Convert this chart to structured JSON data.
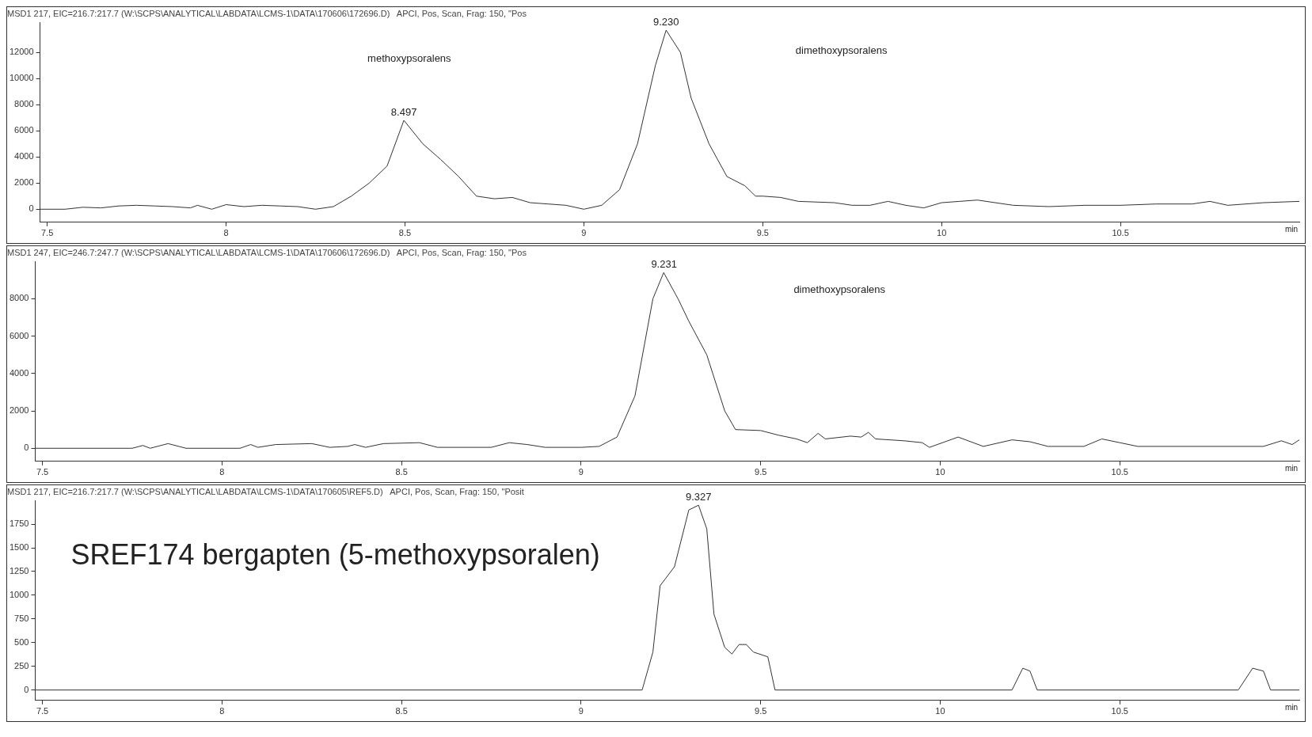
{
  "chart_data": [
    {
      "type": "line",
      "title": "MSD1 217, EIC=216.7:217.7 (W:\\SCPS\\ANALYTICAL\\LABDATA\\LCMS-1\\DATA\\170606\\172696.D)   APCI, Pos, Scan, Frag: 150, \"Pos",
      "xlabel": "min",
      "marker": "none",
      "grid": false,
      "xlim": [
        7.48,
        11.0
      ],
      "xticks": [
        7.5,
        8,
        8.5,
        9,
        9.5,
        10,
        10.5
      ],
      "ylim": [
        -1000,
        14300
      ],
      "yticks": [
        0,
        2000,
        4000,
        6000,
        8000,
        10000,
        12000
      ],
      "x": [
        7.48,
        7.55,
        7.6,
        7.65,
        7.7,
        7.75,
        7.8,
        7.85,
        7.9,
        7.92,
        7.96,
        8.0,
        8.05,
        8.1,
        8.15,
        8.2,
        8.25,
        8.3,
        8.35,
        8.4,
        8.45,
        8.497,
        8.55,
        8.6,
        8.65,
        8.7,
        8.75,
        8.8,
        8.85,
        8.9,
        8.95,
        9.0,
        9.05,
        9.1,
        9.15,
        9.2,
        9.23,
        9.27,
        9.3,
        9.35,
        9.4,
        9.45,
        9.48,
        9.5,
        9.55,
        9.6,
        9.7,
        9.75,
        9.8,
        9.85,
        9.9,
        9.95,
        10.0,
        10.05,
        10.1,
        10.15,
        10.2,
        10.3,
        10.4,
        10.5,
        10.6,
        10.7,
        10.75,
        10.8,
        10.9,
        11.0
      ],
      "series": [
        {
          "color": "#333333",
          "values": [
            0,
            0,
            150,
            100,
            250,
            300,
            250,
            200,
            100,
            300,
            0,
            350,
            200,
            300,
            250,
            200,
            0,
            200,
            1000,
            2000,
            3300,
            6800,
            5000,
            3800,
            2500,
            1000,
            800,
            900,
            500,
            400,
            300,
            0,
            300,
            1500,
            5000,
            11000,
            13700,
            12000,
            8500,
            5000,
            2500,
            1800,
            1000,
            1000,
            900,
            600,
            500,
            300,
            300,
            600,
            300,
            100,
            500,
            600,
            700,
            500,
            300,
            200,
            300,
            300,
            400,
            400,
            600,
            300,
            500,
            600
          ]
        }
      ],
      "annotations": [
        {
          "text": "8.497",
          "x": 8.497,
          "y": 6800
        },
        {
          "text": "9.230",
          "x": 9.23,
          "y": 13700
        },
        "methoxypsoralens",
        "dimethoxypsoralens"
      ]
    },
    {
      "type": "line",
      "title": "MSD1 247, EIC=246.7:247.7 (W:\\SCPS\\ANALYTICAL\\LABDATA\\LCMS-1\\DATA\\170606\\172696.D)   APCI, Pos, Scan, Frag: 150, \"Pos",
      "xlabel": "min",
      "marker": "none",
      "grid": false,
      "xlim": [
        7.48,
        11.0
      ],
      "xticks": [
        7.5,
        8,
        8.5,
        9,
        9.5,
        10,
        10.5
      ],
      "ylim": [
        -700,
        10000
      ],
      "yticks": [
        0,
        2000,
        4000,
        6000,
        8000
      ],
      "x": [
        7.48,
        7.75,
        7.78,
        7.8,
        7.85,
        7.9,
        8.05,
        8.08,
        8.1,
        8.15,
        8.25,
        8.3,
        8.35,
        8.37,
        8.4,
        8.45,
        8.55,
        8.6,
        8.75,
        8.8,
        8.85,
        8.9,
        9.0,
        9.05,
        9.1,
        9.15,
        9.2,
        9.23,
        9.27,
        9.3,
        9.35,
        9.4,
        9.43,
        9.5,
        9.55,
        9.6,
        9.63,
        9.66,
        9.68,
        9.75,
        9.78,
        9.8,
        9.82,
        9.9,
        9.95,
        9.97,
        10.05,
        10.12,
        10.2,
        10.25,
        10.3,
        10.4,
        10.45,
        10.5,
        10.55,
        10.9,
        10.95,
        10.98,
        11.0
      ],
      "series": [
        {
          "color": "#333333",
          "values": [
            0,
            0,
            150,
            0,
            250,
            0,
            0,
            200,
            50,
            200,
            250,
            50,
            100,
            200,
            50,
            250,
            300,
            50,
            50,
            300,
            200,
            50,
            50,
            100,
            600,
            2800,
            8000,
            9400,
            8000,
            6800,
            5000,
            2000,
            1000,
            950,
            700,
            500,
            300,
            800,
            500,
            650,
            600,
            850,
            500,
            400,
            300,
            50,
            600,
            100,
            450,
            350,
            100,
            100,
            500,
            300,
            100,
            100,
            400,
            200,
            450
          ]
        }
      ],
      "annotations": [
        {
          "text": "9.231",
          "x": 9.231,
          "y": 9400
        },
        "dimethoxypsoralens"
      ]
    },
    {
      "type": "line",
      "title": "MSD1 217, EIC=216.7:217.7 (W:\\SCPS\\ANALYTICAL\\LABDATA\\LCMS-1\\DATA\\170605\\REF5.D)   APCI, Pos, Scan, Frag: 150, \"Posit",
      "xlabel": "min",
      "marker": "none",
      "grid": false,
      "xlim": [
        7.48,
        11.0
      ],
      "xticks": [
        7.5,
        8,
        8.5,
        9,
        9.5,
        10,
        10.5
      ],
      "ylim": [
        -110,
        2000
      ],
      "yticks": [
        0,
        250,
        500,
        750,
        1000,
        1250,
        1500,
        1750
      ],
      "x": [
        7.48,
        9.17,
        9.2,
        9.22,
        9.26,
        9.3,
        9.327,
        9.35,
        9.37,
        9.4,
        9.42,
        9.44,
        9.46,
        9.48,
        9.52,
        9.54,
        10.2,
        10.23,
        10.25,
        10.27,
        10.83,
        10.87,
        10.9,
        10.92,
        11.0
      ],
      "series": [
        {
          "color": "#333333",
          "values": [
            0,
            0,
            400,
            1100,
            1300,
            1900,
            1950,
            1700,
            800,
            450,
            380,
            480,
            480,
            400,
            350,
            0,
            0,
            230,
            200,
            0,
            0,
            230,
            200,
            0,
            0
          ]
        }
      ],
      "annotations": [
        {
          "text": "9.327",
          "x": 9.327,
          "y": 1950
        },
        "SREF174 bergapten (5-methoxypsoralen)"
      ]
    }
  ]
}
